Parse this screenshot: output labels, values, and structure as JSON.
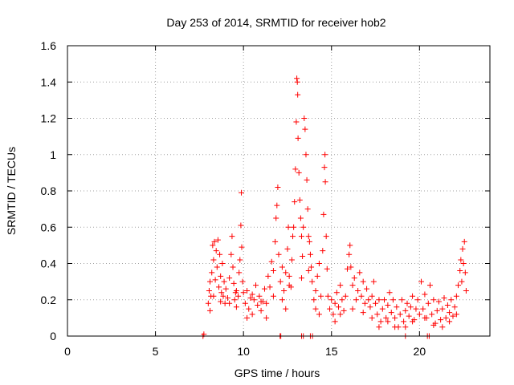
{
  "chart_data": {
    "type": "scatter",
    "title": "Day 253 of 2014, SRMTID for receiver hob2",
    "xlabel": "GPS time / hours",
    "ylabel": "SRMTID / TECUs",
    "xlim": [
      0,
      24
    ],
    "ylim": [
      0,
      1.6
    ],
    "xticks": [
      0,
      5,
      10,
      15,
      20
    ],
    "xtick_labels": [
      "0",
      "5",
      "10",
      "15",
      "20"
    ],
    "yticks": [
      0,
      0.2,
      0.4,
      0.6,
      0.8,
      1.0,
      1.2,
      1.4,
      1.6
    ],
    "ytick_labels": [
      "0",
      "0.2",
      "0.4",
      "0.6",
      "0.8",
      "1",
      "1.2",
      "1.4",
      "1.6"
    ],
    "grid": true,
    "marker": "+",
    "series": [
      {
        "name": "hob2",
        "color": "#ff0000",
        "points": [
          [
            7.7,
            0.0
          ],
          [
            7.75,
            0.01
          ],
          [
            8.0,
            0.18
          ],
          [
            8.05,
            0.25
          ],
          [
            8.1,
            0.3
          ],
          [
            8.15,
            0.22
          ],
          [
            8.2,
            0.35
          ],
          [
            8.25,
            0.5
          ],
          [
            8.3,
            0.42
          ],
          [
            8.35,
            0.52
          ],
          [
            8.4,
            0.31
          ],
          [
            8.45,
            0.47
          ],
          [
            8.5,
            0.38
          ],
          [
            8.55,
            0.53
          ],
          [
            8.6,
            0.27
          ],
          [
            8.65,
            0.45
          ],
          [
            8.7,
            0.33
          ],
          [
            8.75,
            0.24
          ],
          [
            8.8,
            0.4
          ],
          [
            8.85,
            0.22
          ],
          [
            8.9,
            0.3
          ],
          [
            8.95,
            0.18
          ],
          [
            9.0,
            0.26
          ],
          [
            9.1,
            0.21
          ],
          [
            9.2,
            0.32
          ],
          [
            9.3,
            0.45
          ],
          [
            9.35,
            0.55
          ],
          [
            9.4,
            0.38
          ],
          [
            9.45,
            0.29
          ],
          [
            9.5,
            0.2
          ],
          [
            9.55,
            0.24
          ],
          [
            9.6,
            0.16
          ],
          [
            9.7,
            0.22
          ],
          [
            9.75,
            0.35
          ],
          [
            9.8,
            0.42
          ],
          [
            9.85,
            0.61
          ],
          [
            9.88,
            0.79
          ],
          [
            9.9,
            0.49
          ],
          [
            9.95,
            0.3
          ],
          [
            10.0,
            0.24
          ],
          [
            10.1,
            0.18
          ],
          [
            10.2,
            0.25
          ],
          [
            10.3,
            0.15
          ],
          [
            10.4,
            0.21
          ],
          [
            10.5,
            0.12
          ],
          [
            10.6,
            0.2
          ],
          [
            10.7,
            0.28
          ],
          [
            10.8,
            0.17
          ],
          [
            10.9,
            0.22
          ],
          [
            11.0,
            0.14
          ],
          [
            11.1,
            0.19
          ],
          [
            11.2,
            0.26
          ],
          [
            11.3,
            0.18
          ],
          [
            11.4,
            0.33
          ],
          [
            11.5,
            0.27
          ],
          [
            11.6,
            0.41
          ],
          [
            11.7,
            0.36
          ],
          [
            11.8,
            0.52
          ],
          [
            11.85,
            0.65
          ],
          [
            11.9,
            0.72
          ],
          [
            11.95,
            0.82
          ],
          [
            12.0,
            0.45
          ],
          [
            12.1,
            0.3
          ],
          [
            12.2,
            0.38
          ],
          [
            12.3,
            0.25
          ],
          [
            12.4,
            0.35
          ],
          [
            12.5,
            0.48
          ],
          [
            12.55,
            0.6
          ],
          [
            12.6,
            0.33
          ],
          [
            12.7,
            0.27
          ],
          [
            12.75,
            0.42
          ],
          [
            12.8,
            0.55
          ],
          [
            12.85,
            0.6
          ],
          [
            12.9,
            0.74
          ],
          [
            12.95,
            0.92
          ],
          [
            13.0,
            1.18
          ],
          [
            13.03,
            1.42
          ],
          [
            13.06,
            1.4
          ],
          [
            13.08,
            1.33
          ],
          [
            13.1,
            1.09
          ],
          [
            13.15,
            0.9
          ],
          [
            13.2,
            0.75
          ],
          [
            13.25,
            0.65
          ],
          [
            13.3,
            0.55
          ],
          [
            13.35,
            0.44
          ],
          [
            13.4,
            0.6
          ],
          [
            13.45,
            1.2
          ],
          [
            13.5,
            1.14
          ],
          [
            13.55,
            1.0
          ],
          [
            13.6,
            0.86
          ],
          [
            13.65,
            0.7
          ],
          [
            13.7,
            0.55
          ],
          [
            13.75,
            0.52
          ],
          [
            13.8,
            0.45
          ],
          [
            13.85,
            0.38
          ],
          [
            13.9,
            0.3
          ],
          [
            14.0,
            0.2
          ],
          [
            14.1,
            0.25
          ],
          [
            14.2,
            0.33
          ],
          [
            14.3,
            0.4
          ],
          [
            14.4,
            0.22
          ],
          [
            14.5,
            0.47
          ],
          [
            14.55,
            0.67
          ],
          [
            14.6,
            0.93
          ],
          [
            14.63,
            1.0
          ],
          [
            14.65,
            0.85
          ],
          [
            14.7,
            0.55
          ],
          [
            14.75,
            0.37
          ],
          [
            14.8,
            0.22
          ],
          [
            14.9,
            0.15
          ],
          [
            15.0,
            0.2
          ],
          [
            15.1,
            0.12
          ],
          [
            15.2,
            0.18
          ],
          [
            15.3,
            0.24
          ],
          [
            15.4,
            0.16
          ],
          [
            15.5,
            0.28
          ],
          [
            15.6,
            0.2
          ],
          [
            15.7,
            0.14
          ],
          [
            15.8,
            0.22
          ],
          [
            15.9,
            0.37
          ],
          [
            16.0,
            0.45
          ],
          [
            16.05,
            0.5
          ],
          [
            16.1,
            0.38
          ],
          [
            16.2,
            0.28
          ],
          [
            16.3,
            0.32
          ],
          [
            16.4,
            0.2
          ],
          [
            16.5,
            0.25
          ],
          [
            16.6,
            0.35
          ],
          [
            16.7,
            0.22
          ],
          [
            16.8,
            0.3
          ],
          [
            16.9,
            0.18
          ],
          [
            17.0,
            0.26
          ],
          [
            17.1,
            0.2
          ],
          [
            17.2,
            0.16
          ],
          [
            17.3,
            0.22
          ],
          [
            17.4,
            0.3
          ],
          [
            17.5,
            0.18
          ],
          [
            17.6,
            0.12
          ],
          [
            17.7,
            0.2
          ],
          [
            17.8,
            0.08
          ],
          [
            17.9,
            0.15
          ],
          [
            18.0,
            0.2
          ],
          [
            18.1,
            0.1
          ],
          [
            18.2,
            0.17
          ],
          [
            18.3,
            0.24
          ],
          [
            18.4,
            0.13
          ],
          [
            18.5,
            0.2
          ],
          [
            18.6,
            0.1
          ],
          [
            18.7,
            0.16
          ],
          [
            18.8,
            0.05
          ],
          [
            18.9,
            0.12
          ],
          [
            19.0,
            0.2
          ],
          [
            19.1,
            0.08
          ],
          [
            19.2,
            0.14
          ],
          [
            19.3,
            0.18
          ],
          [
            19.4,
            0.11
          ],
          [
            19.5,
            0.16
          ],
          [
            19.6,
            0.22
          ],
          [
            19.7,
            0.09
          ],
          [
            19.8,
            0.15
          ],
          [
            19.9,
            0.2
          ],
          [
            20.0,
            0.12
          ],
          [
            20.1,
            0.3
          ],
          [
            20.2,
            0.15
          ],
          [
            20.3,
            0.23
          ],
          [
            20.4,
            0.1
          ],
          [
            20.5,
            0.18
          ],
          [
            20.6,
            0.28
          ],
          [
            20.7,
            0.12
          ],
          [
            20.8,
            0.2
          ],
          [
            20.9,
            0.07
          ],
          [
            21.0,
            0.14
          ],
          [
            21.1,
            0.19
          ],
          [
            21.2,
            0.09
          ],
          [
            21.3,
            0.15
          ],
          [
            21.4,
            0.21
          ],
          [
            21.5,
            0.1
          ],
          [
            21.6,
            0.17
          ],
          [
            21.7,
            0.13
          ],
          [
            21.8,
            0.2
          ],
          [
            21.9,
            0.11
          ],
          [
            22.0,
            0.16
          ],
          [
            22.1,
            0.22
          ],
          [
            22.2,
            0.28
          ],
          [
            22.3,
            0.36
          ],
          [
            22.35,
            0.42
          ],
          [
            22.4,
            0.3
          ],
          [
            22.45,
            0.48
          ],
          [
            22.5,
            0.4
          ],
          [
            22.55,
            0.52
          ],
          [
            22.6,
            0.35
          ],
          [
            22.65,
            0.25
          ],
          [
            8.1,
            0.14
          ],
          [
            8.3,
            0.22
          ],
          [
            8.7,
            0.19
          ],
          [
            9.2,
            0.18
          ],
          [
            9.6,
            0.25
          ],
          [
            10.2,
            0.1
          ],
          [
            10.5,
            0.23
          ],
          [
            11.0,
            0.19
          ],
          [
            11.3,
            0.1
          ],
          [
            11.7,
            0.22
          ],
          [
            12.2,
            0.2
          ],
          [
            12.4,
            0.15
          ],
          [
            12.6,
            0.28
          ],
          [
            13.3,
            0.32
          ],
          [
            13.7,
            0.36
          ],
          [
            14.1,
            0.15
          ],
          [
            14.3,
            0.12
          ],
          [
            15.2,
            0.08
          ],
          [
            15.5,
            0.12
          ],
          [
            16.2,
            0.15
          ],
          [
            16.8,
            0.13
          ],
          [
            17.3,
            0.1
          ],
          [
            17.7,
            0.05
          ],
          [
            18.2,
            0.08
          ],
          [
            18.6,
            0.05
          ],
          [
            19.2,
            0.05
          ],
          [
            19.6,
            0.08
          ],
          [
            20.3,
            0.1
          ],
          [
            20.8,
            0.06
          ],
          [
            21.3,
            0.05
          ],
          [
            21.7,
            0.08
          ],
          [
            22.1,
            0.12
          ],
          [
            12.08,
            0.0
          ],
          [
            12.12,
            0.0
          ],
          [
            13.3,
            0.0
          ],
          [
            13.4,
            0.0
          ],
          [
            13.8,
            0.0
          ],
          [
            13.92,
            0.0
          ],
          [
            19.2,
            0.0
          ],
          [
            20.45,
            0.0
          ],
          [
            20.55,
            0.0
          ]
        ]
      }
    ]
  }
}
